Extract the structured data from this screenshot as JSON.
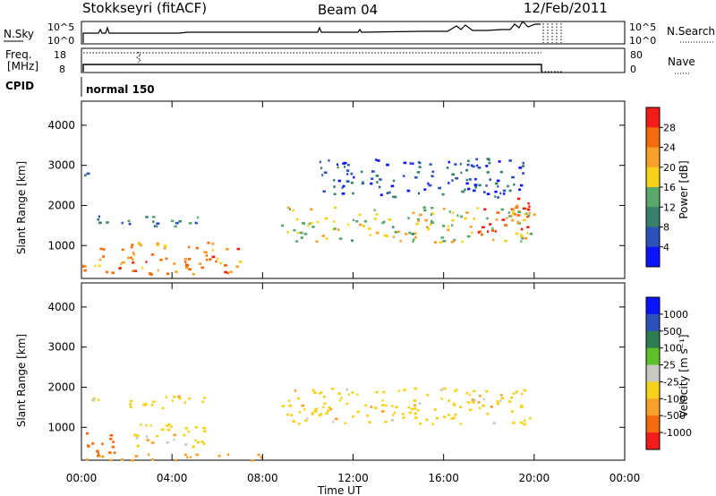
{
  "header": {
    "station": "Stokkseyri (fitACF)",
    "beam": "Beam 04",
    "date": "12/Feb/2011"
  },
  "top_panels": {
    "nsky_label": "N.Sky",
    "nsky_ticks": [
      "10^5",
      "10^0"
    ],
    "nsearch_label": "N.Search",
    "nsearch_ticks": [
      "10^5",
      "10^0"
    ],
    "freq_label_1": "Freq.",
    "freq_label_2": "[MHz]",
    "freq_ticks": [
      "18",
      "8"
    ],
    "nave_label": "Nave",
    "nave_ticks": [
      "80",
      "0"
    ],
    "cpid_label": "CPID",
    "cpid_value": "normal 150"
  },
  "colors": {
    "power": [
      "#0a14ff",
      "#2a52b8",
      "#37806b",
      "#5aa86c",
      "#f6d21a",
      "#f7a02a",
      "#f56a0a",
      "#f41c18"
    ],
    "velocity": [
      "#f41c18",
      "#f56a0a",
      "#f7a02a",
      "#f6d21a",
      "#c8c8c0",
      "#5dc22a",
      "#2e7d52",
      "#2a52b8",
      "#0a14ff"
    ]
  },
  "chart_data": [
    {
      "type": "heatmap",
      "title": "",
      "xlabel": "Time UT",
      "ylabel": "Slant Range [km]",
      "xlim": [
        "00:00",
        "24:00"
      ],
      "ylim": [
        180,
        4600
      ],
      "x_ticks": [
        "00:00",
        "04:00",
        "08:00",
        "12:00",
        "16:00",
        "20:00",
        "00:00"
      ],
      "y_ticks": [
        "1000",
        "2000",
        "3000",
        "4000"
      ],
      "colorbar": {
        "label": "Power [dB]",
        "ticks": [
          "4",
          "8",
          "12",
          "16",
          "20",
          "24",
          "28"
        ],
        "range": [
          0,
          30
        ]
      },
      "regions": [
        {
          "t_start": 0.0,
          "t_end": 7.0,
          "r_start": 300,
          "r_end": 1100,
          "value": 22
        },
        {
          "t_start": 0.0,
          "t_end": 5.5,
          "r_start": 1500,
          "r_end": 1800,
          "value": 10
        },
        {
          "t_start": 0.0,
          "t_end": 0.5,
          "r_start": 2700,
          "r_end": 3000,
          "value": 8
        },
        {
          "t_start": 8.8,
          "t_end": 20.0,
          "r_start": 1100,
          "r_end": 2000,
          "value": 16
        },
        {
          "t_start": 10.5,
          "t_end": 19.5,
          "r_start": 2200,
          "r_end": 3200,
          "value": 6
        },
        {
          "t_start": 17.5,
          "t_end": 19.8,
          "r_start": 1300,
          "r_end": 2200,
          "value": 25
        }
      ]
    },
    {
      "type": "heatmap",
      "title": "",
      "xlabel": "Time UT",
      "ylabel": "Slant Range [km]",
      "xlim": [
        "00:00",
        "24:00"
      ],
      "ylim": [
        180,
        4600
      ],
      "x_ticks": [
        "00:00",
        "04:00",
        "08:00",
        "12:00",
        "16:00",
        "20:00",
        "00:00"
      ],
      "y_ticks": [
        "1000",
        "2000",
        "3000",
        "4000"
      ],
      "colorbar": {
        "label": "Velocity [m s⁻¹]",
        "ticks": [
          "1000",
          "500",
          "100",
          "25",
          "-25",
          "-100",
          "-500",
          "-1000"
        ]
      },
      "regions": [
        {
          "t_start": 0.0,
          "t_end": 2.0,
          "r_start": 300,
          "r_end": 900,
          "value": -300
        },
        {
          "t_start": 2.0,
          "t_end": 5.5,
          "r_start": 500,
          "r_end": 1100,
          "value": 0
        },
        {
          "t_start": 0.0,
          "t_end": 5.5,
          "r_start": 1500,
          "r_end": 1800,
          "value": 0
        },
        {
          "t_start": 8.8,
          "t_end": 20.0,
          "r_start": 1100,
          "r_end": 2000,
          "value": 0
        },
        {
          "t_start": 0.0,
          "t_end": 8.0,
          "r_start": 180,
          "r_end": 350,
          "value": -60
        }
      ]
    }
  ]
}
